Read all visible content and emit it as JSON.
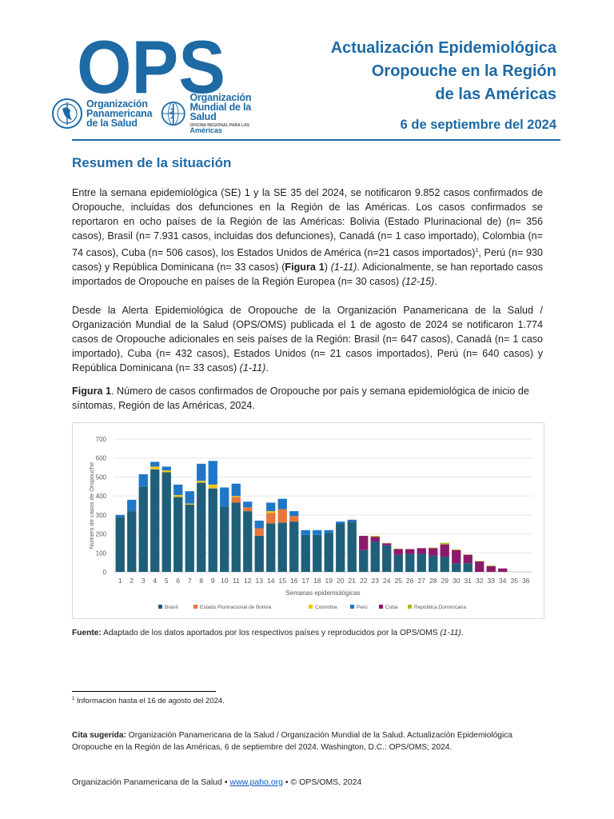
{
  "header": {
    "logo_text": "OPS",
    "org1": {
      "line1": "Organización",
      "line2": "Panamericana",
      "line3": "de la Salud"
    },
    "org2": {
      "line1": "Organización",
      "line2": "Mundial de la Salud",
      "sub": "OFICINA REGIONAL PARA LAS",
      "americas": "Américas"
    },
    "title_lines": [
      "Actualización Epidemiológica",
      "Oropouche en la Región",
      "de las Américas"
    ],
    "date": "6 de septiembre del 2024",
    "brand_color": "#1d6aa5"
  },
  "section_title": "Resumen de la situación",
  "para1": {
    "t1": "Entre la semana epidemiológica (SE) 1 y la SE 35 del 2024, se notificaron 9.852 casos confirmados de Oropouche, incluidas dos defunciones en la Región de las Américas. Los casos confirmados se reportaron en ocho países de la Región de las Américas: Bolivia (Estado Plurinacional de) (n= 356 casos), Brasil (n= 7.931 casos, incluidas dos defunciones), Canadá (n= 1 caso importado), Colombia (n= 74 casos), Cuba (n= 506 casos), los Estados Unidos de América (n=21 casos importados)",
    "sup": "1",
    "t2": ", Perú (n= 930 casos) y República Dominicana (n= 33 casos) (",
    "fig_ref": "Figura 1",
    "t3": ") ",
    "ref1": "(1-11)",
    "t4": ". Adicionalmente, se han reportado casos importados de Oropouche en países de la Región Europea (n= 30 casos) ",
    "ref2": "(12-15)",
    "t5": "."
  },
  "para2": {
    "t1": "Desde la Alerta Epidemiológica de Oropouche de la Organización Panamericana de la Salud / Organización Mundial de la Salud (OPS/OMS) publicada el 1 de agosto de 2024 se notificaron 1.774 casos de Oropouche adicionales en seis países de la Región: Brasil (n= 647 casos), Canadá (n= 1 caso importado), Cuba (n= 432 casos), Estados Unidos (n= 21 casos importados), Perú (n= 640 casos) y República Dominicana (n= 33 casos) ",
    "ref": "(1-11)",
    "t2": "."
  },
  "figure": {
    "label": "Figura 1",
    "caption": ". Número de casos confirmados de Oropouche por país y semana epidemiológica de inicio de síntomas, Región de las Américas, 2024."
  },
  "chart_data": {
    "type": "bar",
    "stacked": true,
    "xlabel": "Semanas epidemiológicas",
    "ylabel": "Número de casos de Oropouche",
    "ylim": [
      0,
      700
    ],
    "yticks": [
      0,
      100,
      200,
      300,
      400,
      500,
      600,
      700
    ],
    "grid": true,
    "legend_position": "bottom",
    "categories": [
      "1",
      "2",
      "3",
      "4",
      "5",
      "6",
      "7",
      "8",
      "9",
      "10",
      "11",
      "12",
      "13",
      "14",
      "15",
      "16",
      "17",
      "18",
      "19",
      "20",
      "21",
      "22",
      "23",
      "24",
      "25",
      "26",
      "27",
      "28",
      "29",
      "30",
      "31",
      "32",
      "33",
      "34",
      "35",
      "36"
    ],
    "series": [
      {
        "name": "Brasil",
        "color": "#1f5f7a",
        "values": [
          290,
          320,
          450,
          540,
          525,
          395,
          355,
          470,
          440,
          345,
          365,
          320,
          190,
          255,
          260,
          265,
          195,
          195,
          205,
          255,
          265,
          115,
          160,
          140,
          90,
          95,
          95,
          85,
          80,
          45,
          45,
          0,
          0,
          0,
          0,
          0
        ]
      },
      {
        "name": "Estado Plurinacional de Bolivia",
        "color": "#e8753c",
        "values": [
          0,
          0,
          0,
          0,
          0,
          0,
          0,
          0,
          0,
          0,
          30,
          20,
          40,
          55,
          70,
          30,
          0,
          0,
          0,
          0,
          0,
          0,
          0,
          0,
          0,
          0,
          0,
          0,
          0,
          0,
          0,
          0,
          0,
          0,
          0,
          0
        ]
      },
      {
        "name": "Colombia",
        "color": "#f5c518",
        "values": [
          0,
          0,
          0,
          15,
          10,
          10,
          5,
          10,
          20,
          0,
          5,
          0,
          0,
          10,
          0,
          0,
          0,
          0,
          0,
          0,
          0,
          0,
          0,
          0,
          0,
          0,
          0,
          0,
          0,
          0,
          0,
          0,
          0,
          0,
          0,
          0
        ]
      },
      {
        "name": "Perú",
        "color": "#1f77c8",
        "values": [
          10,
          60,
          65,
          25,
          20,
          55,
          65,
          90,
          125,
          100,
          65,
          30,
          40,
          45,
          55,
          25,
          25,
          25,
          15,
          10,
          10,
          0,
          0,
          0,
          0,
          0,
          0,
          0,
          0,
          0,
          0,
          0,
          0,
          0,
          0,
          0
        ]
      },
      {
        "name": "Cuba",
        "color": "#8b1a6b",
        "values": [
          0,
          0,
          0,
          0,
          0,
          0,
          0,
          0,
          0,
          0,
          0,
          0,
          0,
          0,
          0,
          0,
          0,
          0,
          0,
          0,
          0,
          75,
          25,
          10,
          30,
          25,
          30,
          40,
          65,
          70,
          45,
          55,
          30,
          18,
          0,
          0
        ]
      },
      {
        "name": "República Dominicana",
        "color": "#b5b81a",
        "values": [
          0,
          0,
          0,
          0,
          0,
          0,
          0,
          0,
          0,
          0,
          0,
          0,
          0,
          0,
          0,
          0,
          0,
          0,
          0,
          0,
          0,
          0,
          5,
          2,
          2,
          0,
          0,
          3,
          8,
          3,
          2,
          2,
          3,
          0,
          0,
          0
        ]
      }
    ]
  },
  "source": {
    "label": "Fuente:",
    "text": " Adaptado de los datos aportados por los respectivos países y reproducidos por la OPS/OMS ",
    "ref": "(1-11)",
    "end": "."
  },
  "footnote": {
    "num": "1",
    "text": " Información hasta el 16 de agosto del 2024."
  },
  "citation": {
    "label": "Cita sugerida:",
    "text": " Organización Panamericana de la Salud / Organización Mundial de la Salud. Actualización Epidemiológica Oropouche en la Región de las Américas, 6 de septiembre del 2024. Washington, D.C.: OPS/OMS; 2024."
  },
  "footer": {
    "org": "Organización Panamericana de la Salud • ",
    "link": "www.paho.org",
    "rest": " • © OPS/OMS, 2024"
  }
}
